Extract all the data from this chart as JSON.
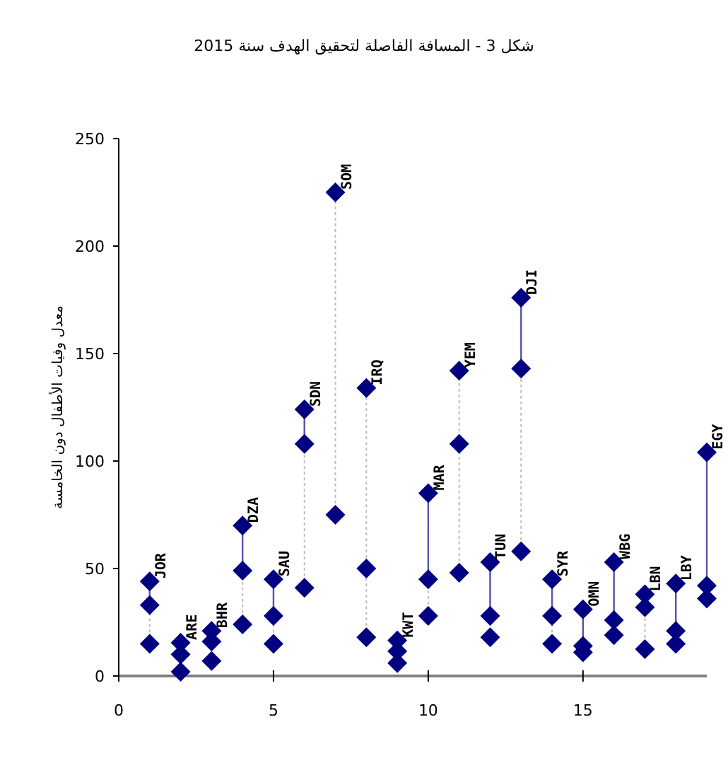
{
  "chart_data": {
    "type": "scatter",
    "title": "شكل 3 - المسافة الفاصلة لتحقيق الهدف سنة 2015",
    "ylabel": "معدل وفيات الأطفال دون الخامسة",
    "x": [
      1,
      2,
      3,
      4,
      5,
      6,
      7,
      8,
      9,
      10,
      11,
      12,
      13,
      14,
      15,
      16,
      17,
      18,
      19
    ],
    "series": [
      {
        "color": "#000080",
        "values": [
          44,
          15.5,
          21,
          70,
          45,
          124,
          225,
          50,
          16.5,
          85,
          108,
          53,
          176,
          45,
          31,
          53,
          38,
          43,
          104
        ]
      },
      {
        "color": "#000080",
        "values": [
          33,
          10,
          16,
          49,
          28,
          108,
          null,
          134,
          11.5,
          45,
          142,
          28,
          143,
          28,
          14,
          26,
          32,
          21,
          42
        ]
      },
      {
        "color": "#000080",
        "values": [
          15,
          2,
          7,
          24,
          15,
          41,
          75,
          18,
          6,
          28,
          48,
          18,
          58,
          15,
          11,
          19,
          12.5,
          15,
          36
        ]
      }
    ],
    "marker": "diamond",
    "xlim": [
      0,
      19
    ],
    "ylim": [
      0,
      250
    ],
    "xticks": [
      0,
      5,
      10,
      15
    ],
    "yticks": [
      0,
      50,
      100,
      150,
      200,
      250
    ],
    "grid": false,
    "annotations": [
      {
        "text": "JOR",
        "x": 1,
        "y": 44
      },
      {
        "text": "ARE",
        "x": 2,
        "y": 15.5
      },
      {
        "text": "BHR",
        "x": 3,
        "y": 21
      },
      {
        "text": "DZA",
        "x": 4,
        "y": 70
      },
      {
        "text": "SAU",
        "x": 5,
        "y": 45
      },
      {
        "text": "SDN",
        "x": 6,
        "y": 124
      },
      {
        "text": "SOM",
        "x": 7,
        "y": 225
      },
      {
        "text": "IRQ",
        "x": 8,
        "y": 134
      },
      {
        "text": "KWT",
        "x": 9,
        "y": 16.5
      },
      {
        "text": "MAR",
        "x": 10,
        "y": 85
      },
      {
        "text": "YEM",
        "x": 11,
        "y": 142
      },
      {
        "text": "TUN",
        "x": 12,
        "y": 53
      },
      {
        "text": "DJI",
        "x": 13,
        "y": 176
      },
      {
        "text": "SYR",
        "x": 14,
        "y": 45
      },
      {
        "text": "OMN",
        "x": 15,
        "y": 31
      },
      {
        "text": "WBG",
        "x": 16,
        "y": 53
      },
      {
        "text": "LBN",
        "x": 17,
        "y": 38
      },
      {
        "text": "LBY",
        "x": 18,
        "y": 43
      },
      {
        "text": "EGY",
        "x": 19,
        "y": 104
      }
    ]
  }
}
